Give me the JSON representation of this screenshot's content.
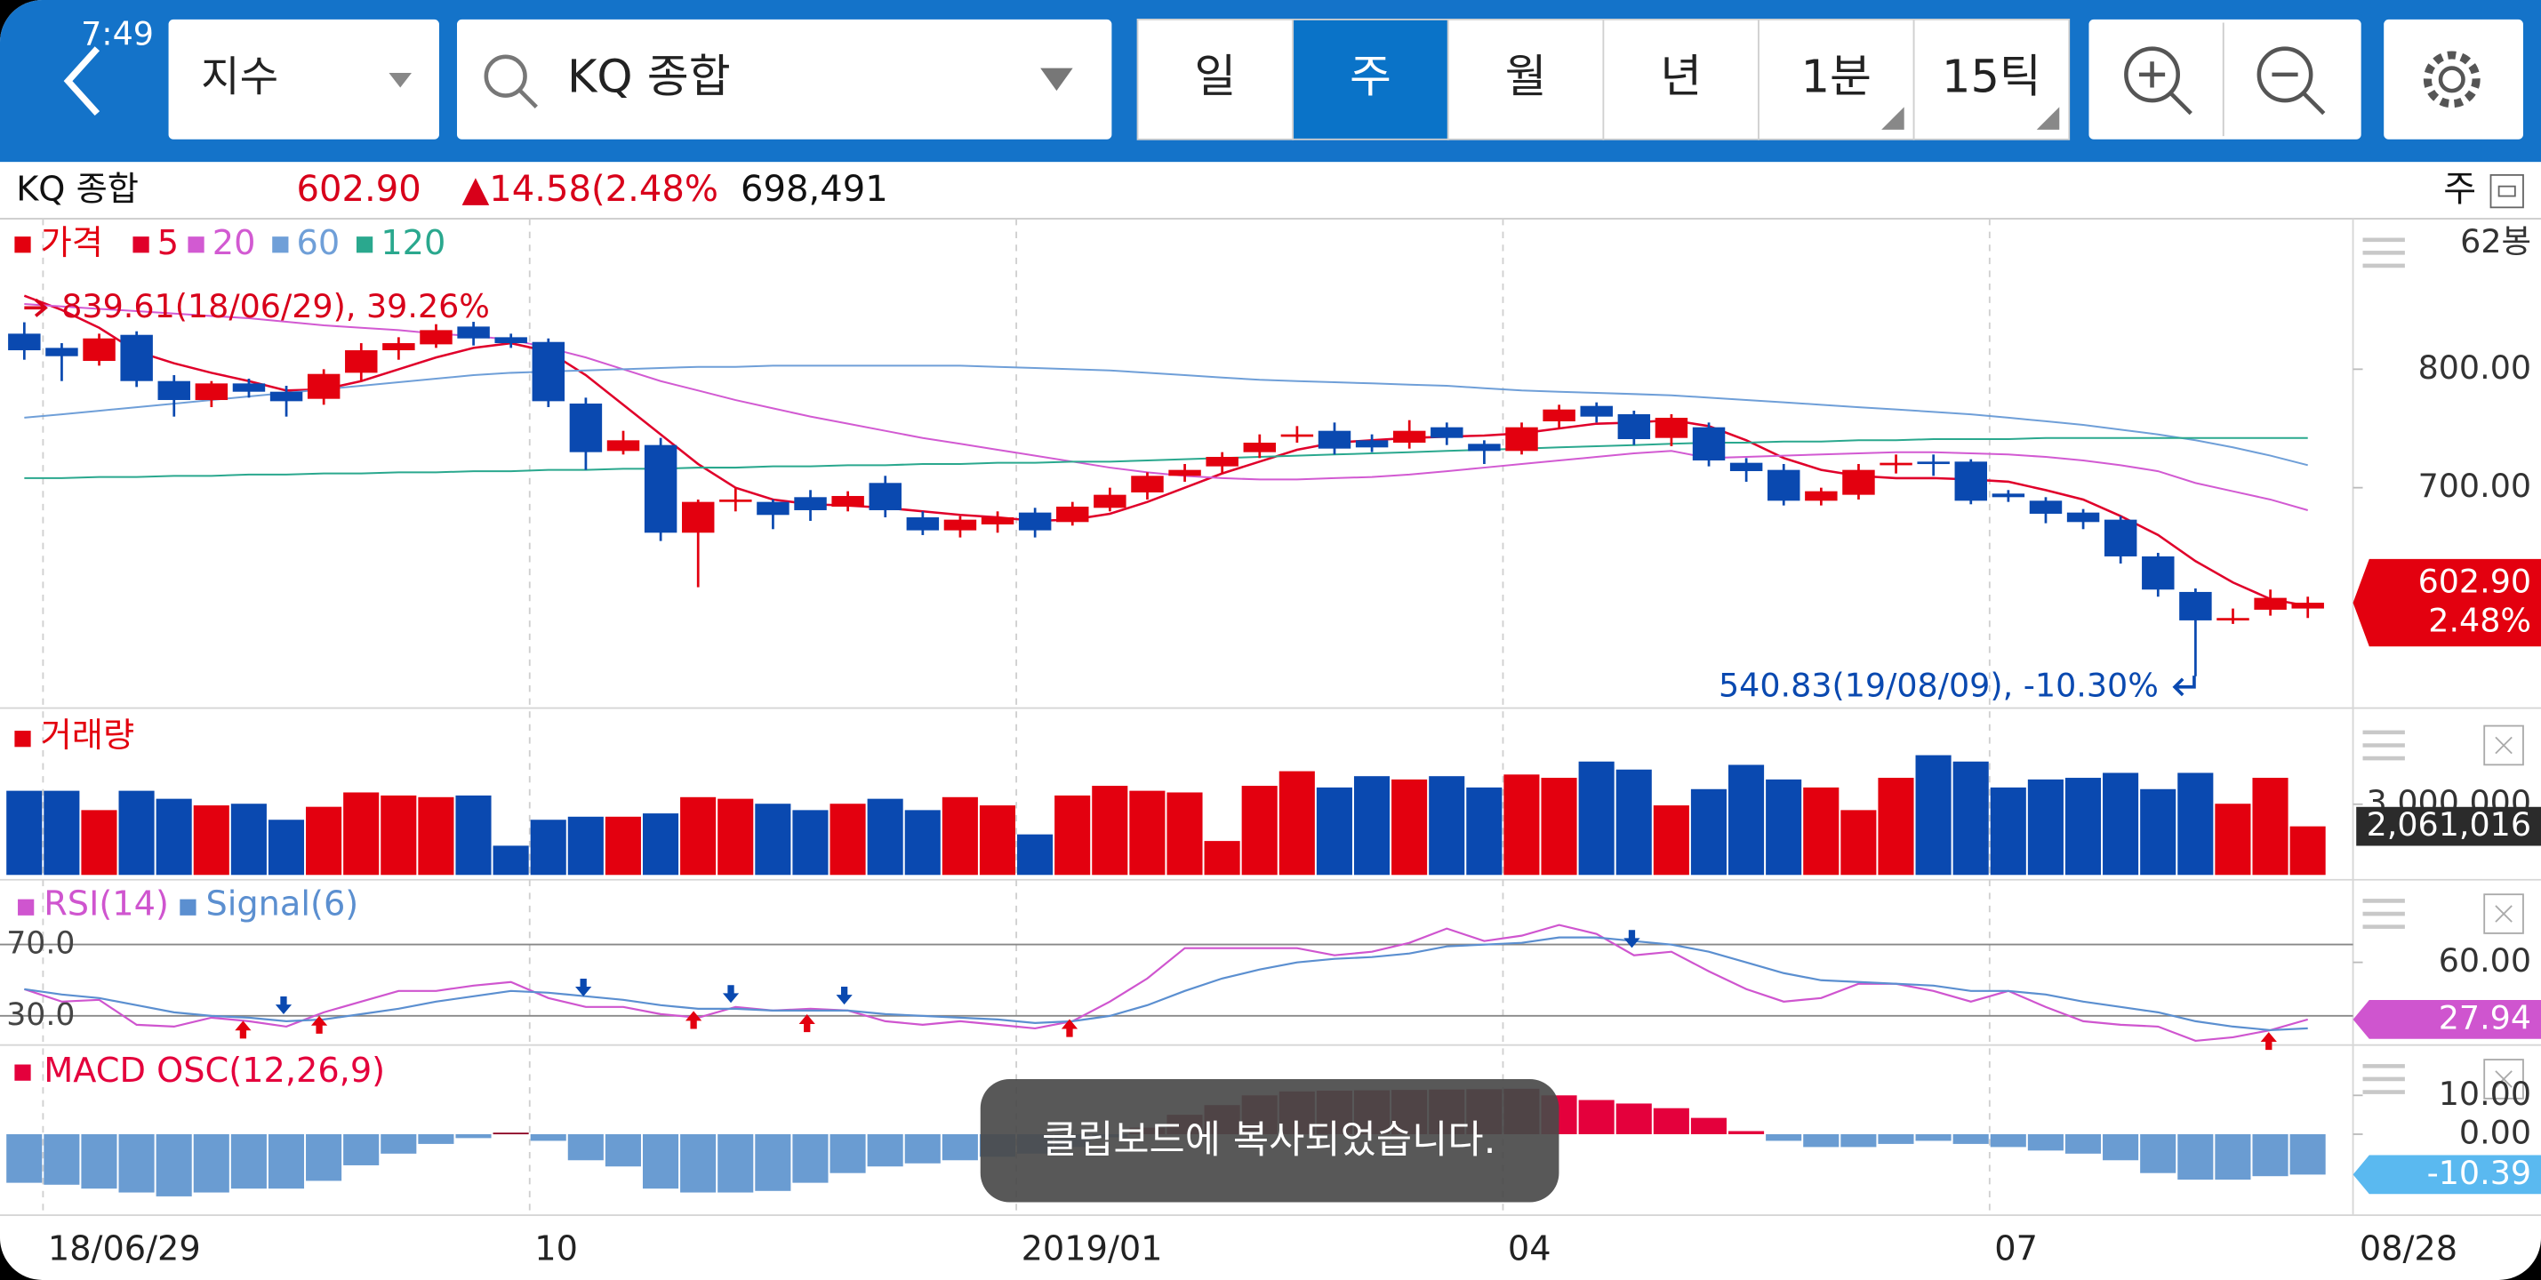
{
  "status_time": "7:49",
  "toolbar": {
    "market": "지수",
    "search": "KQ 종합",
    "periods": [
      "일",
      "주",
      "월",
      "년",
      "1분",
      "15틱"
    ],
    "selected_period": 1
  },
  "quote": {
    "name": "KQ 종합",
    "price": "602.90",
    "change": "▲14.58(2.48%",
    "volume": "698,491",
    "period": "주"
  },
  "chart_data": [
    {
      "type": "candlestick",
      "legend_title": "가격",
      "bar_count_label": "62봉",
      "x_end_label": "08/28",
      "up_color": "#e3000f",
      "down_color": "#0a49b0",
      "categories": [
        null,
        "18/06/29",
        null,
        null,
        null,
        null,
        null,
        null,
        null,
        null,
        null,
        null,
        null,
        null,
        "10",
        null,
        null,
        null,
        null,
        null,
        null,
        null,
        null,
        null,
        null,
        null,
        null,
        "2019/01",
        null,
        null,
        null,
        null,
        null,
        null,
        null,
        null,
        null,
        null,
        null,
        null,
        "04",
        null,
        null,
        null,
        null,
        null,
        null,
        null,
        null,
        null,
        null,
        null,
        null,
        "07",
        null,
        null,
        null,
        null,
        null,
        null,
        null,
        null
      ],
      "open": [
        830,
        818,
        807,
        829,
        790,
        774,
        788,
        781,
        775,
        797,
        816,
        821,
        836,
        827,
        823,
        771,
        731,
        736,
        662,
        688,
        688,
        692,
        684,
        704,
        675,
        664,
        669,
        679,
        671,
        683,
        696,
        710,
        718,
        730,
        745,
        748,
        740,
        738,
        751,
        737,
        731,
        756,
        769,
        762,
        742,
        751,
        721,
        715,
        689,
        694,
        719,
        722,
        722,
        695,
        689,
        679,
        673,
        642,
        612,
        590,
        597,
        598
      ],
      "high": [
        839.61,
        822,
        830,
        832,
        795,
        790,
        792,
        786,
        800,
        822,
        827,
        838,
        840,
        830,
        826,
        776,
        748,
        742,
        690,
        700,
        690,
        698,
        697,
        710,
        680,
        676,
        680,
        683,
        688,
        700,
        713,
        720,
        730,
        745,
        752,
        755,
        745,
        757,
        755,
        740,
        755,
        770,
        772,
        765,
        762,
        755,
        725,
        720,
        700,
        720,
        728,
        728,
        724,
        698,
        692,
        682,
        676,
        645,
        615,
        598,
        614,
        608
      ],
      "low": [
        808,
        790,
        803,
        785,
        760,
        768,
        776,
        760,
        770,
        790,
        808,
        818,
        820,
        818,
        768,
        715,
        728,
        655,
        616,
        680,
        665,
        672,
        680,
        675,
        660,
        658,
        662,
        658,
        668,
        680,
        690,
        705,
        712,
        725,
        738,
        728,
        730,
        733,
        736,
        720,
        728,
        750,
        755,
        736,
        735,
        718,
        705,
        685,
        685,
        690,
        712,
        710,
        686,
        688,
        670,
        665,
        636,
        608,
        540.83,
        585,
        592,
        590
      ],
      "close": [
        816,
        811,
        826,
        790,
        774,
        788,
        781,
        773,
        796,
        816,
        822,
        833,
        826,
        822,
        773,
        730,
        740,
        662,
        688,
        690,
        677,
        681,
        693,
        681,
        664,
        673,
        675,
        664,
        684,
        694,
        710,
        715,
        726,
        738,
        745,
        733,
        734,
        748,
        742,
        731,
        751,
        766,
        760,
        741,
        759,
        723,
        714,
        689,
        697,
        715,
        721,
        720,
        689,
        692,
        678,
        671,
        642,
        614,
        588,
        590,
        607,
        602.9
      ],
      "series": [
        {
          "name": "5",
          "color": "#e0002a",
          "values": [
            862,
            850,
            835,
            815,
            805,
            797,
            790,
            782,
            783,
            790,
            800,
            810,
            818,
            822,
            815,
            795,
            770,
            745,
            720,
            700,
            690,
            686,
            685,
            683,
            680,
            677,
            675,
            672,
            673,
            678,
            688,
            700,
            712,
            722,
            732,
            738,
            740,
            742,
            743,
            744,
            746,
            750,
            754,
            755,
            757,
            752,
            740,
            725,
            715,
            710,
            708,
            708,
            707,
            705,
            698,
            690,
            676,
            660,
            638,
            620,
            606,
            600
          ]
        },
        {
          "name": "20",
          "color": "#d25ad2",
          "values": [
            855,
            853,
            851,
            849,
            847,
            845,
            843,
            840,
            837,
            835,
            833,
            830,
            828,
            825,
            818,
            810,
            800,
            790,
            782,
            774,
            767,
            760,
            754,
            748,
            742,
            737,
            732,
            727,
            722,
            717,
            713,
            710,
            708,
            707,
            707,
            708,
            709,
            711,
            714,
            717,
            720,
            723,
            726,
            729,
            731,
            725,
            726,
            727,
            728,
            729,
            730,
            730,
            729,
            728,
            726,
            723,
            719,
            714,
            704,
            697,
            690,
            681
          ]
        },
        {
          "name": "60",
          "color": "#6f9fd8",
          "values": [
            759,
            762,
            765,
            768,
            771,
            774,
            777,
            780,
            783,
            786,
            789,
            792,
            795,
            797,
            798,
            799,
            800,
            801,
            802,
            802,
            803,
            803,
            803,
            803,
            803,
            803,
            802,
            801,
            800,
            799,
            797,
            795,
            793,
            791,
            790,
            789,
            788,
            787,
            786,
            784,
            782,
            781,
            780,
            779,
            778,
            776,
            774,
            772,
            770,
            768,
            766,
            764,
            762,
            759,
            756,
            753,
            749,
            745,
            740,
            734,
            727,
            719
          ]
        },
        {
          "name": "120",
          "color": "#2aa88e",
          "values": [
            708,
            708,
            709,
            709,
            710,
            710,
            711,
            711,
            712,
            712,
            713,
            713,
            714,
            714,
            715,
            715,
            716,
            716,
            717,
            717,
            718,
            718,
            719,
            719,
            720,
            720,
            721,
            721,
            722,
            722,
            723,
            724,
            725,
            726,
            727,
            728,
            729,
            730,
            731,
            732,
            733,
            734,
            735,
            736,
            737,
            738,
            738,
            739,
            739,
            740,
            740,
            741,
            741,
            741,
            742,
            742,
            742,
            742,
            742,
            742,
            742,
            742
          ]
        }
      ],
      "ylim": [
        514,
        927
      ],
      "yticks": [
        {
          "value": 800,
          "label": "800.00"
        },
        {
          "value": 700,
          "label": "700.00"
        }
      ],
      "annotations": [
        {
          "text": "839.61(18/06/29), 39.26%",
          "color": "#d8001a"
        },
        {
          "text": "540.83(19/08/09), -10.30%",
          "color": "#0a49b0"
        }
      ],
      "last_price_tag": [
        "602.90",
        "2.48%"
      ]
    },
    {
      "type": "bar",
      "title": "거래량",
      "values": [
        3570000,
        3570000,
        2750000,
        3570000,
        3230000,
        2950000,
        3020000,
        2340000,
        2890000,
        3500000,
        3370000,
        3300000,
        3370000,
        1240000,
        2340000,
        2470000,
        2470000,
        2610000,
        3300000,
        3230000,
        3020000,
        2750000,
        3020000,
        3230000,
        2750000,
        3300000,
        2950000,
        1720000,
        3370000,
        3780000,
        3570000,
        3500000,
        1440000,
        3780000,
        4400000,
        3710000,
        4190000,
        4050000,
        4190000,
        3710000,
        4260000,
        4120000,
        4810000,
        4470000,
        2950000,
        3640000,
        4670000,
        4050000,
        3710000,
        2750000,
        4120000,
        5080000,
        4810000,
        3710000,
        4050000,
        4120000,
        4330000,
        3640000,
        4330000,
        3020000,
        4120000,
        2061016
      ],
      "ylim": [
        0,
        6530000
      ],
      "yticks": [
        {
          "value": 3000000,
          "label": "3,000,000"
        }
      ],
      "last_value_label": "2,061,016"
    },
    {
      "type": "line",
      "series": [
        {
          "name": "RSI(14)",
          "color": "#cf55cf",
          "values": [
            45,
            38,
            39,
            25,
            24,
            29,
            27,
            24,
            32,
            38,
            44,
            44,
            47,
            49,
            40,
            35,
            35,
            31,
            29,
            35,
            33,
            34,
            33,
            27,
            25,
            27,
            25,
            23,
            27,
            38,
            51,
            68,
            68,
            68,
            68,
            64,
            66,
            71,
            79,
            72,
            75,
            81,
            76,
            64,
            66,
            55,
            45,
            38,
            40,
            48,
            48,
            44,
            38,
            44,
            35,
            27,
            25,
            24,
            16,
            18,
            22,
            27.94
          ]
        },
        {
          "name": "Signal(6)",
          "color": "#5b8fd0",
          "values": [
            45,
            42,
            40,
            36,
            32,
            30,
            29,
            27,
            28,
            31,
            34,
            38,
            41,
            44,
            43,
            41,
            39,
            36,
            34,
            34,
            33,
            33,
            33,
            31,
            30,
            29,
            28,
            26,
            27,
            30,
            36,
            44,
            51,
            56,
            60,
            62,
            63,
            65,
            69,
            70,
            71,
            74,
            74,
            72,
            70,
            66,
            60,
            54,
            50,
            49,
            48,
            47,
            44,
            44,
            42,
            38,
            35,
            32,
            27,
            24,
            22,
            23
          ]
        }
      ],
      "ylim": [
        13.6,
        104.5
      ],
      "yticks": [
        {
          "value": 70,
          "label": "70.0"
        },
        {
          "value": 30,
          "label": "30.0"
        }
      ],
      "right_ticks": [
        {
          "value": 60,
          "label": "60.00"
        }
      ]
    },
    {
      "type": "bar",
      "title": "MACD OSC(12,26,9)",
      "negative_color": "#6a9cd2",
      "positive_color": "#e4003c",
      "positive_dark_color": "#8c0022",
      "values": [
        -12.5,
        -13,
        -14,
        -15,
        -16,
        -15,
        -14,
        -14,
        -12,
        -8,
        -5,
        -2.5,
        -1,
        0.4,
        -1.7,
        -6.7,
        -8.3,
        -14,
        -15,
        -15,
        -14.6,
        -12.5,
        -10,
        -8.3,
        -7.5,
        -6.7,
        -5.8,
        -5,
        -3.3,
        -0.8,
        1.7,
        5,
        7.5,
        10,
        11,
        11.2,
        11.3,
        11.4,
        11.5,
        11.6,
        11.7,
        10,
        8.8,
        7.9,
        6.7,
        4.2,
        0.8,
        -1.7,
        -3.3,
        -3.3,
        -2.5,
        -1.7,
        -2.5,
        -3.3,
        -4.2,
        -5,
        -6.7,
        -10,
        -11.7,
        -11.7,
        -10.8,
        -10.39
      ],
      "ylim": [
        -17.5,
        21.7
      ],
      "yticks": [
        {
          "value": 10,
          "label": "10.00"
        },
        {
          "value": 0,
          "label": "0.00"
        }
      ]
    }
  ],
  "toast": "클립보드에 복사되었습니다."
}
